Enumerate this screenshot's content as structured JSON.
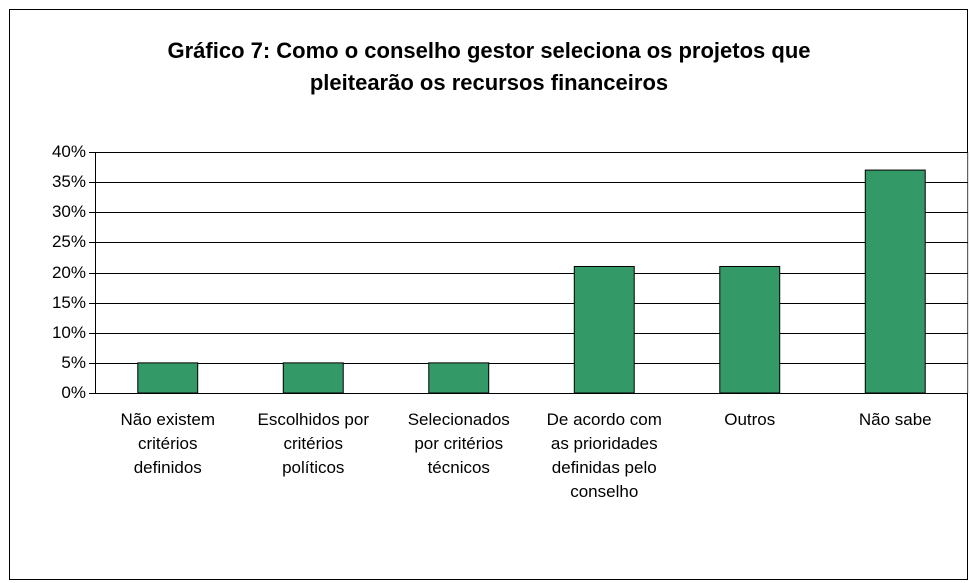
{
  "chart_data": {
    "type": "bar",
    "title": [
      "Gráfico 7: Como o conselho gestor seleciona os projetos que",
      "pleitearão os recursos financeiros"
    ],
    "categories": [
      "Não existem critérios definidos",
      "Escolhidos por critérios políticos",
      "Selecionados por critérios técnicos",
      "De acordo com as prioridades definidas pelo conselho",
      "Outros",
      "Não sabe"
    ],
    "values": [
      5,
      5,
      5,
      21,
      21,
      37
    ],
    "color": "#339966",
    "ylim": [
      0,
      40
    ],
    "yticks": [
      {
        "value": 0,
        "label": "0%"
      },
      {
        "value": 5,
        "label": "5%"
      },
      {
        "value": 10,
        "label": "10%"
      },
      {
        "value": 15,
        "label": "15%"
      },
      {
        "value": 20,
        "label": "20%"
      },
      {
        "value": 25,
        "label": "25%"
      },
      {
        "value": 30,
        "label": "30%"
      },
      {
        "value": 35,
        "label": "35%"
      },
      {
        "value": 40,
        "label": "40%"
      }
    ],
    "grid": true
  }
}
